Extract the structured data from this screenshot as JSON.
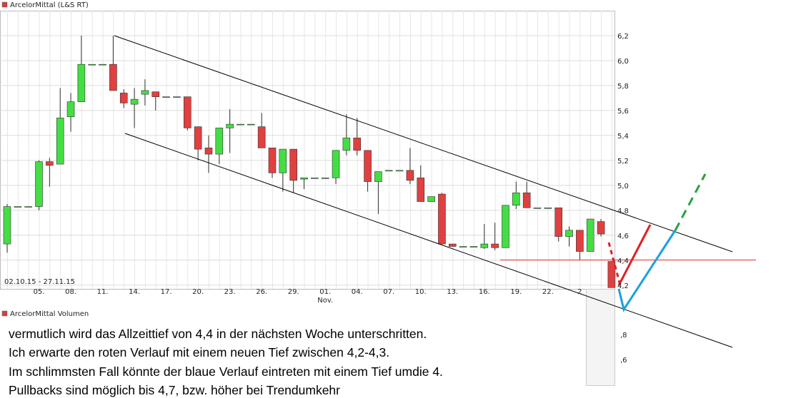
{
  "header": {
    "title": "ArcelorMittal (L&S RT)",
    "volume_title": "ArcelorMittal Volumen"
  },
  "chart_data": {
    "type": "candlestick",
    "date_range": "02.10.15 - 27.11.15",
    "month_label": "Nov.",
    "categories": [
      null,
      null,
      null,
      "05.",
      null,
      null,
      "08.",
      null,
      null,
      "11.",
      null,
      null,
      "14.",
      null,
      null,
      "17.",
      null,
      null,
      "20.",
      null,
      null,
      "23.",
      null,
      null,
      "26.",
      null,
      null,
      "29.",
      null,
      null,
      "01.",
      null,
      null,
      "04.",
      null,
      null,
      "07.",
      null,
      null,
      "10.",
      null,
      null,
      "13.",
      null,
      null,
      "16.",
      null,
      null,
      "19.",
      null,
      null,
      "22.",
      null,
      null,
      "2",
      null,
      null,
      null
    ],
    "open": [
      4.53,
      4.83,
      4.83,
      4.83,
      5.19,
      5.17,
      5.55,
      5.67,
      5.97,
      5.97,
      5.97,
      5.74,
      5.65,
      5.73,
      5.75,
      5.71,
      5.71,
      5.71,
      5.47,
      5.3,
      5.25,
      5.46,
      5.49,
      5.49,
      5.47,
      5.3,
      5.1,
      5.29,
      5.05,
      5.06,
      5.06,
      5.06,
      5.28,
      5.38,
      5.28,
      5.03,
      5.12,
      5.12,
      5.12,
      5.06,
      4.87,
      4.93,
      4.53,
      4.51,
      4.51,
      4.5,
      4.53,
      4.5,
      4.84,
      4.94,
      4.82,
      4.82,
      4.82,
      4.59,
      4.64,
      4.47,
      4.71,
      4.39
    ],
    "high": [
      4.85,
      4.83,
      4.83,
      5.2,
      5.22,
      5.78,
      5.74,
      6.2,
      5.97,
      5.97,
      6.2,
      5.77,
      5.78,
      5.85,
      5.75,
      5.71,
      5.71,
      5.71,
      5.47,
      5.4,
      5.46,
      5.61,
      5.49,
      5.49,
      5.58,
      5.3,
      5.29,
      5.29,
      5.06,
      5.06,
      5.06,
      5.28,
      5.57,
      5.54,
      5.28,
      5.11,
      5.12,
      5.12,
      5.3,
      5.16,
      4.91,
      4.94,
      4.53,
      4.51,
      4.51,
      4.69,
      4.7,
      4.84,
      5.03,
      5.03,
      4.82,
      4.82,
      4.82,
      4.67,
      4.64,
      4.73,
      4.73,
      4.39
    ],
    "low": [
      4.46,
      4.83,
      4.83,
      4.8,
      4.99,
      5.17,
      5.43,
      5.67,
      5.97,
      5.97,
      5.76,
      5.62,
      5.46,
      5.64,
      5.6,
      5.71,
      5.71,
      5.44,
      5.2,
      5.1,
      5.17,
      5.26,
      5.49,
      5.49,
      5.3,
      5.06,
      4.95,
      4.94,
      4.97,
      5.06,
      5.06,
      5.01,
      5.24,
      5.24,
      4.95,
      4.77,
      5.12,
      5.12,
      5.01,
      4.87,
      4.87,
      4.53,
      4.51,
      4.51,
      4.51,
      4.49,
      4.48,
      4.5,
      4.81,
      4.82,
      4.82,
      4.82,
      4.55,
      4.51,
      4.4,
      4.47,
      4.59,
      4.18
    ],
    "close": [
      4.83,
      4.83,
      4.83,
      5.19,
      5.16,
      5.54,
      5.67,
      5.97,
      5.97,
      5.97,
      5.76,
      5.66,
      5.69,
      5.76,
      5.71,
      5.71,
      5.71,
      5.46,
      5.29,
      5.25,
      5.46,
      5.49,
      5.49,
      5.49,
      5.3,
      5.1,
      5.29,
      5.04,
      5.06,
      5.06,
      5.06,
      5.28,
      5.38,
      5.28,
      5.03,
      5.11,
      5.12,
      5.12,
      5.04,
      4.87,
      4.91,
      4.53,
      4.51,
      4.51,
      4.51,
      4.53,
      4.5,
      4.84,
      4.94,
      4.82,
      4.82,
      4.82,
      4.59,
      4.64,
      4.47,
      4.73,
      4.61,
      4.18
    ],
    "up_color": "#44dd44",
    "down_color": "#e04040",
    "ylim": [
      4.17,
      6.4
    ],
    "yticks": [
      {
        "value": 4.2,
        "label": "4,2"
      },
      {
        "value": 4.4,
        "label": "4,4"
      },
      {
        "value": 4.6,
        "label": "4,6"
      },
      {
        "value": 4.8,
        "label": "4,8"
      },
      {
        "value": 5.0,
        "label": "5,0"
      },
      {
        "value": 5.2,
        "label": "5,2"
      },
      {
        "value": 5.4,
        "label": "5,4"
      },
      {
        "value": 5.6,
        "label": "5,6"
      },
      {
        "value": 5.8,
        "label": "5,8"
      },
      {
        "value": 6.0,
        "label": "6,0"
      },
      {
        "value": 6.2,
        "label": "6,2"
      }
    ],
    "grid": true,
    "lower_axis_labels": [
      ",8",
      ",6"
    ]
  },
  "annotation": {
    "lines": [
      "vermutlich wird das Allzeittief von 4,4 in der nächsten Woche unterschritten.",
      "Ich erwarte den roten Verlauf mit einem neuen Tief zwischen 4,2-4,3.",
      "Im schlimmsten Fall könnte der blaue Verlauf eintreten mit einem Tief umdie 4.",
      "Pullbacks sind möglich bis 4,7, bzw. höher bei Trendumkehr"
    ]
  }
}
